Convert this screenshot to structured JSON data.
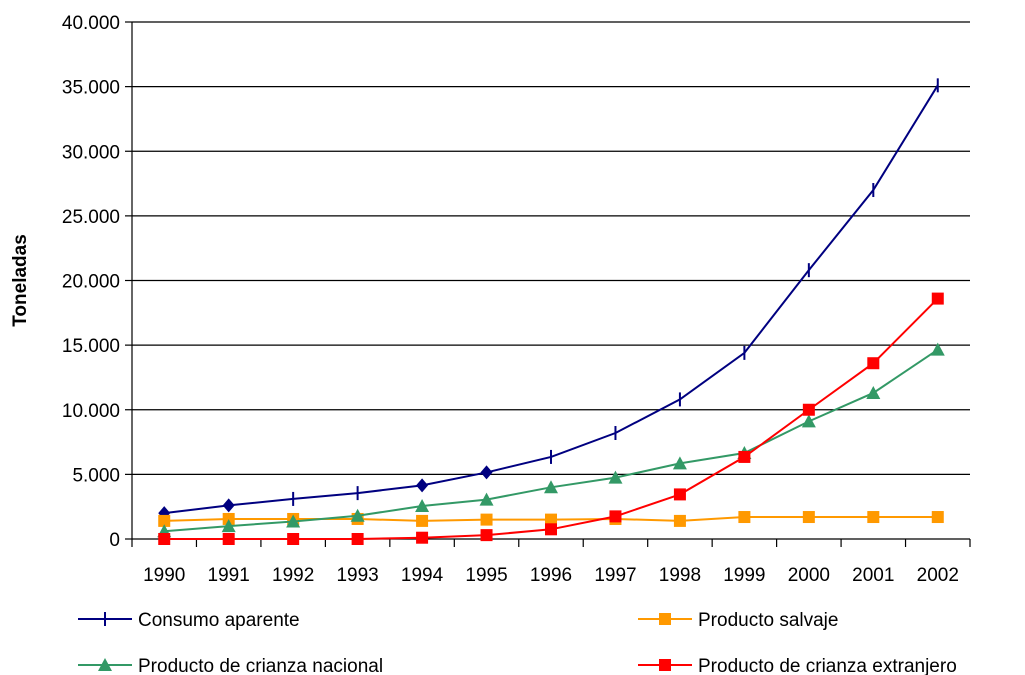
{
  "chart_data": {
    "type": "line",
    "title": "",
    "xlabel": "",
    "ylabel": "Toneladas",
    "ylim": [
      0,
      40000
    ],
    "y_ticks": [
      0,
      5000,
      10000,
      15000,
      20000,
      25000,
      30000,
      35000,
      40000
    ],
    "y_tick_labels": [
      "0",
      "5.000",
      "10.000",
      "15.000",
      "20.000",
      "25.000",
      "30.000",
      "35.000",
      "40.000"
    ],
    "categories": [
      "1990",
      "1991",
      "1992",
      "1993",
      "1994",
      "1995",
      "1996",
      "1997",
      "1998",
      "1999",
      "2000",
      "2001",
      "2002"
    ],
    "grid": true,
    "legend_position": "bottom",
    "series": [
      {
        "name": "Consumo aparente",
        "color": "#000080",
        "marker": "tick",
        "marker_overrides": {
          "0": "diamond",
          "1": "diamond",
          "4": "diamond",
          "5": "diamond"
        },
        "values": [
          2000,
          2600,
          3100,
          3550,
          4150,
          5150,
          6350,
          8200,
          10800,
          14400,
          20800,
          27000,
          35100
        ]
      },
      {
        "name": "Producto salvaje",
        "color": "#FF9900",
        "marker": "square",
        "values": [
          1400,
          1550,
          1550,
          1550,
          1400,
          1500,
          1500,
          1550,
          1400,
          1700,
          1700,
          1700,
          1700
        ]
      },
      {
        "name": "Producto de crianza nacional",
        "color": "#339966",
        "marker": "triangle",
        "values": [
          600,
          1000,
          1350,
          1800,
          2550,
          3050,
          4000,
          4750,
          5850,
          6650,
          9100,
          11300,
          14650
        ]
      },
      {
        "name": "Producto de crianza extranjero",
        "color": "#FF0000",
        "marker": "square",
        "values": [
          0,
          0,
          0,
          0,
          100,
          300,
          750,
          1750,
          3450,
          6350,
          10000,
          13600,
          18600
        ]
      }
    ]
  }
}
